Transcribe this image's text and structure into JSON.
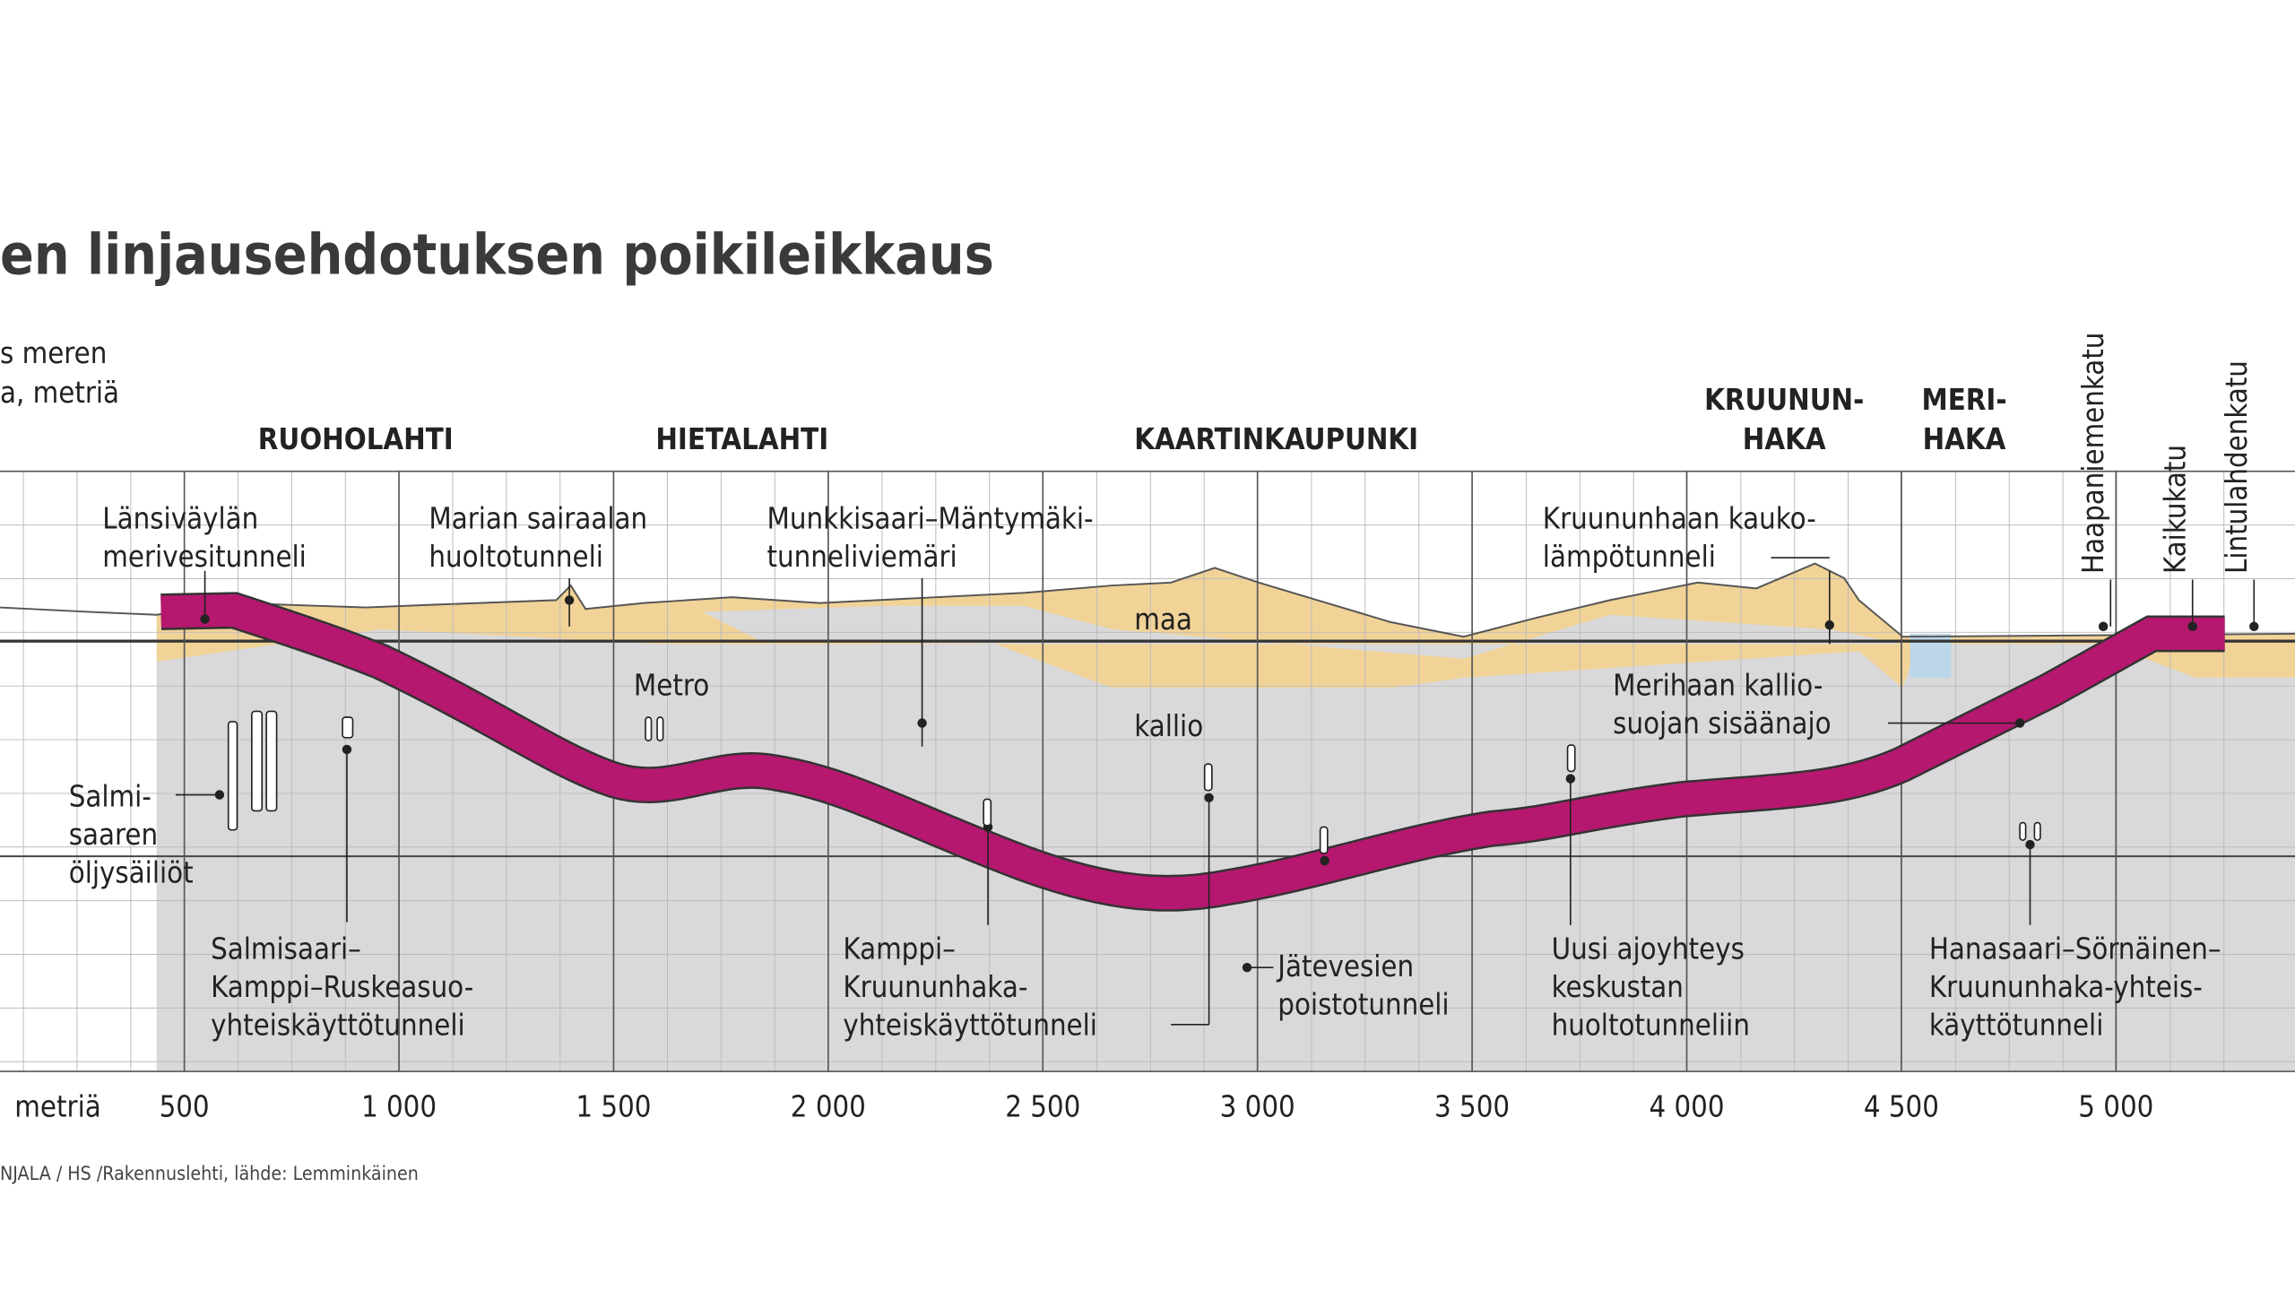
{
  "chart_data": {
    "type": "profile",
    "title": "en linjausehdotuksen poikileikkaus",
    "y_label": [
      "s meren",
      "a, metriä"
    ],
    "x_label": "metriä",
    "source": "NJALA / HS /Rakennuslehti, lähde: Lemminkäinen",
    "xlim": [
      0,
      5400
    ],
    "xticks": [
      500,
      {
        "value": 1000,
        "label": "1 000"
      },
      {
        "value": 1500,
        "label": "1 500"
      },
      {
        "value": 2000,
        "label": "2 000"
      },
      {
        "value": 2500,
        "label": "2 500"
      },
      {
        "value": 3000,
        "label": "3 000"
      },
      {
        "value": 3500,
        "label": "3 500"
      },
      {
        "value": 4000,
        "label": "4 000"
      },
      {
        "value": 4500,
        "label": "4 500"
      },
      {
        "value": 5000,
        "label": "5 000"
      }
    ],
    "grid": true,
    "districts": [
      [
        "RUOHOLAHTI"
      ],
      [
        "HIETALAHTI"
      ],
      [
        "KAARTINKAUPUNKI"
      ],
      [
        "KRUUNUN-",
        "HAKA"
      ],
      [
        "MERI-",
        "HAKA"
      ]
    ],
    "streets": [
      "Haapaniemenkatu",
      "Kaikukatu",
      "Lintulahdenkatu"
    ],
    "labels": {
      "soil": "maa",
      "rock": "kallio",
      "metro": "Metro"
    },
    "annotations": [
      [
        "Länsiväylän",
        "merivesitunneli"
      ],
      [
        "Marian sairaalan",
        "huoltotunneli"
      ],
      [
        "Munkkisaari–Mäntymäki-",
        "tunneliviemäri"
      ],
      [
        "Kruununhaan kauko-",
        "lämpötunneli"
      ],
      [
        "Merihaan kallio-",
        "suojan sisäänajo"
      ],
      [
        "Salmi-",
        "saaren",
        "öljysäiliöt"
      ],
      [
        "Salmisaari–",
        "Kamppi–Ruskeasuo-",
        "yhteiskäyttötunneli"
      ],
      [
        "Kamppi–",
        "Kruununhaka-",
        "yhteiskäyttötunneli"
      ],
      [
        "Jätevesien",
        "poistotunneli"
      ],
      [
        "Uusi ajoyhteys",
        "keskustan",
        "huoltotunneliin"
      ],
      [
        "Hanasaari–Sörnäinen–",
        "Kruununhaka-yhteis-",
        "käyttötunneli"
      ]
    ]
  }
}
